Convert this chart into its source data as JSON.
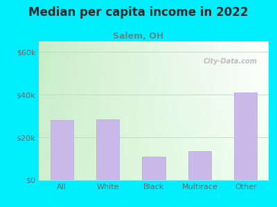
{
  "title": "Median per capita income in 2022",
  "subtitle": "Salem, OH",
  "categories": [
    "All",
    "White",
    "Black",
    "Multirace",
    "Other"
  ],
  "values": [
    28000,
    28500,
    11000,
    13500,
    41000
  ],
  "bar_color": "#c9b8e8",
  "bar_edge_color": "#b8a8d8",
  "background_outer": "#00eeff",
  "background_inner_topleft": "#c8eec8",
  "background_inner_topright": "#f0f8f0",
  "background_inner_bottom": "#e8f8e8",
  "title_color": "#2a2a2a",
  "subtitle_color": "#5a8a8a",
  "tick_color": "#666666",
  "grid_color": "#cccccc",
  "yticks": [
    0,
    20000,
    40000,
    60000
  ],
  "ytick_labels": [
    "$0",
    "$20k",
    "$40k",
    "$60k"
  ],
  "ylim": [
    0,
    65000
  ],
  "watermark": "City-Data.com",
  "title_fontsize": 12,
  "subtitle_fontsize": 9,
  "tick_fontsize": 8
}
